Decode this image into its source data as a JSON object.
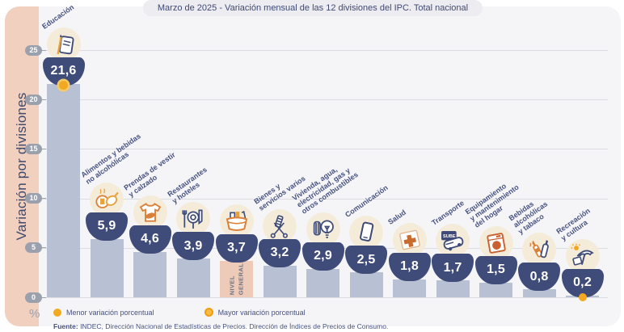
{
  "title": "Marzo de 2025 - Variación mensual de las 12 divisiones del IPC. Total nacional",
  "y_axis": {
    "axis_title": "Variación por divisiones",
    "unit": "%",
    "ticks": [
      0,
      5,
      10,
      15,
      20,
      25
    ]
  },
  "bars": [
    {
      "label": "Educación",
      "lines": [
        "Educación"
      ],
      "value": "21,6",
      "value_num": 21.6,
      "icon": "notebook-pencil-icon",
      "marker": "mayor",
      "general": false
    },
    {
      "label": "Alimentos y bebidas no alcohólicas",
      "lines": [
        "Alimentos y bebidas",
        "no alcohólicas"
      ],
      "value": "5,9",
      "value_num": 5.9,
      "icon": "food-icon",
      "marker": "",
      "general": false
    },
    {
      "label": "Prendas de vestir y calzado",
      "lines": [
        "Prendas de vestir",
        "y calzado"
      ],
      "value": "4,6",
      "value_num": 4.6,
      "icon": "tshirt-icon",
      "marker": "",
      "general": false
    },
    {
      "label": "Restaurantes y hoteles",
      "lines": [
        "Restaurantes",
        "y hoteles"
      ],
      "value": "3,9",
      "value_num": 3.9,
      "icon": "cutlery-icon",
      "marker": "",
      "general": false
    },
    {
      "label": "Nivel general",
      "lines": [],
      "bar_text": [
        "NIVEL",
        "GENERAL"
      ],
      "value": "3,7",
      "value_num": 3.7,
      "icon": "shopping-basket-icon",
      "marker": "",
      "general": true
    },
    {
      "label": "Bienes y servicios varios",
      "lines": [
        "Bienes y",
        "servicios varios"
      ],
      "value": "3,2",
      "value_num": 3.2,
      "icon": "comb-scissors-icon",
      "marker": "",
      "general": false
    },
    {
      "label": "Vivienda, agua, electricidad, gas y otros combustibles",
      "lines": [
        "Vivienda, agua,",
        "electricidad, gas y",
        "otros combustibles"
      ],
      "value": "2,9",
      "value_num": 2.9,
      "icon": "lightbulb-icon",
      "marker": "",
      "general": false
    },
    {
      "label": "Comunicación",
      "lines": [
        "Comunicación"
      ],
      "value": "2,5",
      "value_num": 2.5,
      "icon": "smartphone-icon",
      "marker": "",
      "general": false
    },
    {
      "label": "Salud",
      "lines": [
        "Salud"
      ],
      "value": "1,8",
      "value_num": 1.8,
      "icon": "first-aid-icon",
      "marker": "",
      "general": false
    },
    {
      "label": "Transporte",
      "lines": [
        "Transporte"
      ],
      "value": "1,7",
      "value_num": 1.7,
      "icon": "bus-sube-icon",
      "marker": "",
      "general": false
    },
    {
      "label": "Equipamiento y mantenimiento del hogar",
      "lines": [
        "Equipamiento",
        "y mantenimiento",
        "del hogar"
      ],
      "value": "1,5",
      "value_num": 1.5,
      "icon": "washing-machine-icon",
      "marker": "",
      "general": false
    },
    {
      "label": "Bebidas alcohólicas y tabaco",
      "lines": [
        "Bebidas",
        "alcohólicas",
        "y tabaco"
      ],
      "value": "0,8",
      "value_num": 0.8,
      "icon": "bottles-icon",
      "marker": "",
      "general": false
    },
    {
      "label": "Recreación y cultura",
      "lines": [
        "Recreación",
        "y cultura"
      ],
      "value": "0,2",
      "value_num": 0.2,
      "icon": "umbrella-sun-icon",
      "marker": "menor",
      "general": false
    }
  ],
  "legend": [
    {
      "style": "solid",
      "label": "Menor variación porcentual"
    },
    {
      "style": "ring",
      "label": "Mayor variación porcentual"
    }
  ],
  "footer": {
    "source_label": "Fuente:",
    "source_text": " INDEC, Dirección Nacional de Estadísticas de Precios. Dirección de Índices de Precios de Consumo."
  },
  "colors": {
    "card_bg": "#f5f5f8",
    "side_band": "#f2d0bf",
    "bar": "#b8c1d3",
    "bar_general": "#eecab8",
    "bowl": "#3f4b78",
    "accent_orange": "#f2a91f",
    "label_navy": "#46527f",
    "tick_pill": "#9aa0ac"
  },
  "chart_data": {
    "type": "bar",
    "title": "Marzo de 2025 - Variación mensual de las 12 divisiones del IPC. Total nacional",
    "categories": [
      "Educación",
      "Alimentos y bebidas no alcohólicas",
      "Prendas de vestir y calzado",
      "Restaurantes y hoteles",
      "Nivel general",
      "Bienes y servicios varios",
      "Vivienda, agua, electricidad, gas y otros combustibles",
      "Comunicación",
      "Salud",
      "Transporte",
      "Equipamiento y mantenimiento del hogar",
      "Bebidas alcohólicas y tabaco",
      "Recreación y cultura"
    ],
    "values": [
      21.6,
      5.9,
      4.6,
      3.9,
      3.7,
      3.2,
      2.9,
      2.5,
      1.8,
      1.7,
      1.5,
      0.8,
      0.2
    ],
    "xlabel": "",
    "ylabel": "Variación por divisiones",
    "y_unit": "%",
    "ylim": [
      0,
      25
    ],
    "grid": true,
    "legend_position": "bottom",
    "annotations": [
      {
        "category": "Educación",
        "note": "Mayor variación porcentual"
      },
      {
        "category": "Recreación y cultura",
        "note": "Menor variación porcentual"
      },
      {
        "category": "Nivel general",
        "note": "Barra destacada en color salmón (NIVEL GENERAL)"
      }
    ],
    "source": "Fuente: INDEC, Dirección Nacional de Estadísticas de Precios. Dirección de Índices de Precios de Consumo."
  }
}
